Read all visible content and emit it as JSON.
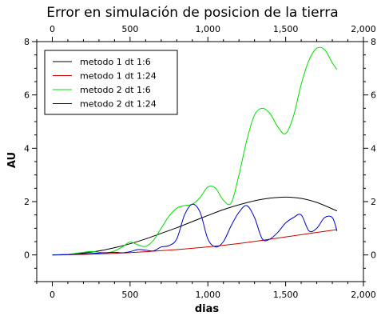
{
  "chart_data": {
    "type": "line",
    "title": "Error en simulación de posicion de la tierra",
    "xlabel": "dias",
    "ylabel": "AU",
    "xlim": [
      -100,
      2000
    ],
    "ylim": [
      -1,
      8
    ],
    "x_ticks": [
      0,
      500,
      1000,
      1500,
      2000
    ],
    "x_tick_labels": [
      "0",
      "500",
      "1,000",
      "1,500",
      "2,000"
    ],
    "y_ticks": [
      0,
      2,
      4,
      6,
      8
    ],
    "y_tick_labels": [
      "0",
      "2",
      "4",
      "6",
      "8"
    ],
    "mirror_axes": true,
    "grid": false,
    "legend_position": "top-left",
    "series": [
      {
        "name": "metodo 1 dt 1:6",
        "color": "#000000",
        "x": [
          0,
          100,
          200,
          300,
          400,
          500,
          600,
          700,
          800,
          900,
          1000,
          1100,
          1200,
          1300,
          1400,
          1500,
          1600,
          1700,
          1830
        ],
        "y": [
          0.0,
          0.02,
          0.07,
          0.15,
          0.27,
          0.42,
          0.6,
          0.81,
          1.02,
          1.25,
          1.48,
          1.7,
          1.88,
          2.03,
          2.13,
          2.17,
          2.12,
          1.97,
          1.65
        ]
      },
      {
        "name": "metodo 1 dt 1:24",
        "color": "#cc0000",
        "x": [
          0,
          200,
          400,
          600,
          800,
          1000,
          1200,
          1400,
          1600,
          1830
        ],
        "y": [
          0.0,
          0.02,
          0.06,
          0.12,
          0.2,
          0.3,
          0.43,
          0.59,
          0.76,
          0.95
        ]
      },
      {
        "name": "metodo 2 dt 1:6",
        "color": "#00dd00",
        "x": [
          0,
          100,
          150,
          200,
          250,
          300,
          350,
          400,
          450,
          500,
          550,
          600,
          650,
          700,
          750,
          800,
          850,
          900,
          950,
          1000,
          1050,
          1100,
          1150,
          1200,
          1250,
          1300,
          1350,
          1400,
          1450,
          1500,
          1550,
          1600,
          1650,
          1700,
          1750,
          1800,
          1830
        ],
        "y": [
          0.0,
          0.02,
          0.06,
          0.1,
          0.13,
          0.1,
          0.08,
          0.15,
          0.3,
          0.48,
          0.38,
          0.32,
          0.55,
          1.0,
          1.45,
          1.75,
          1.85,
          1.9,
          2.15,
          2.55,
          2.5,
          2.05,
          1.95,
          3.0,
          4.3,
          5.25,
          5.5,
          5.3,
          4.8,
          4.55,
          5.2,
          6.4,
          7.3,
          7.75,
          7.7,
          7.2,
          6.95
        ]
      },
      {
        "name": "metodo 2 dt 1:24",
        "color": "#0000cc",
        "x": [
          0,
          100,
          200,
          300,
          400,
          450,
          500,
          550,
          600,
          650,
          700,
          750,
          800,
          850,
          900,
          950,
          1000,
          1050,
          1100,
          1150,
          1200,
          1250,
          1300,
          1350,
          1400,
          1450,
          1500,
          1550,
          1600,
          1650,
          1700,
          1750,
          1800,
          1830
        ],
        "y": [
          0.0,
          0.01,
          0.04,
          0.07,
          0.1,
          0.08,
          0.12,
          0.2,
          0.18,
          0.15,
          0.3,
          0.35,
          0.6,
          1.5,
          1.9,
          1.6,
          0.6,
          0.3,
          0.5,
          1.1,
          1.6,
          1.85,
          1.4,
          0.6,
          0.6,
          0.85,
          1.2,
          1.4,
          1.5,
          0.9,
          1.0,
          1.4,
          1.4,
          0.9
        ]
      }
    ]
  }
}
